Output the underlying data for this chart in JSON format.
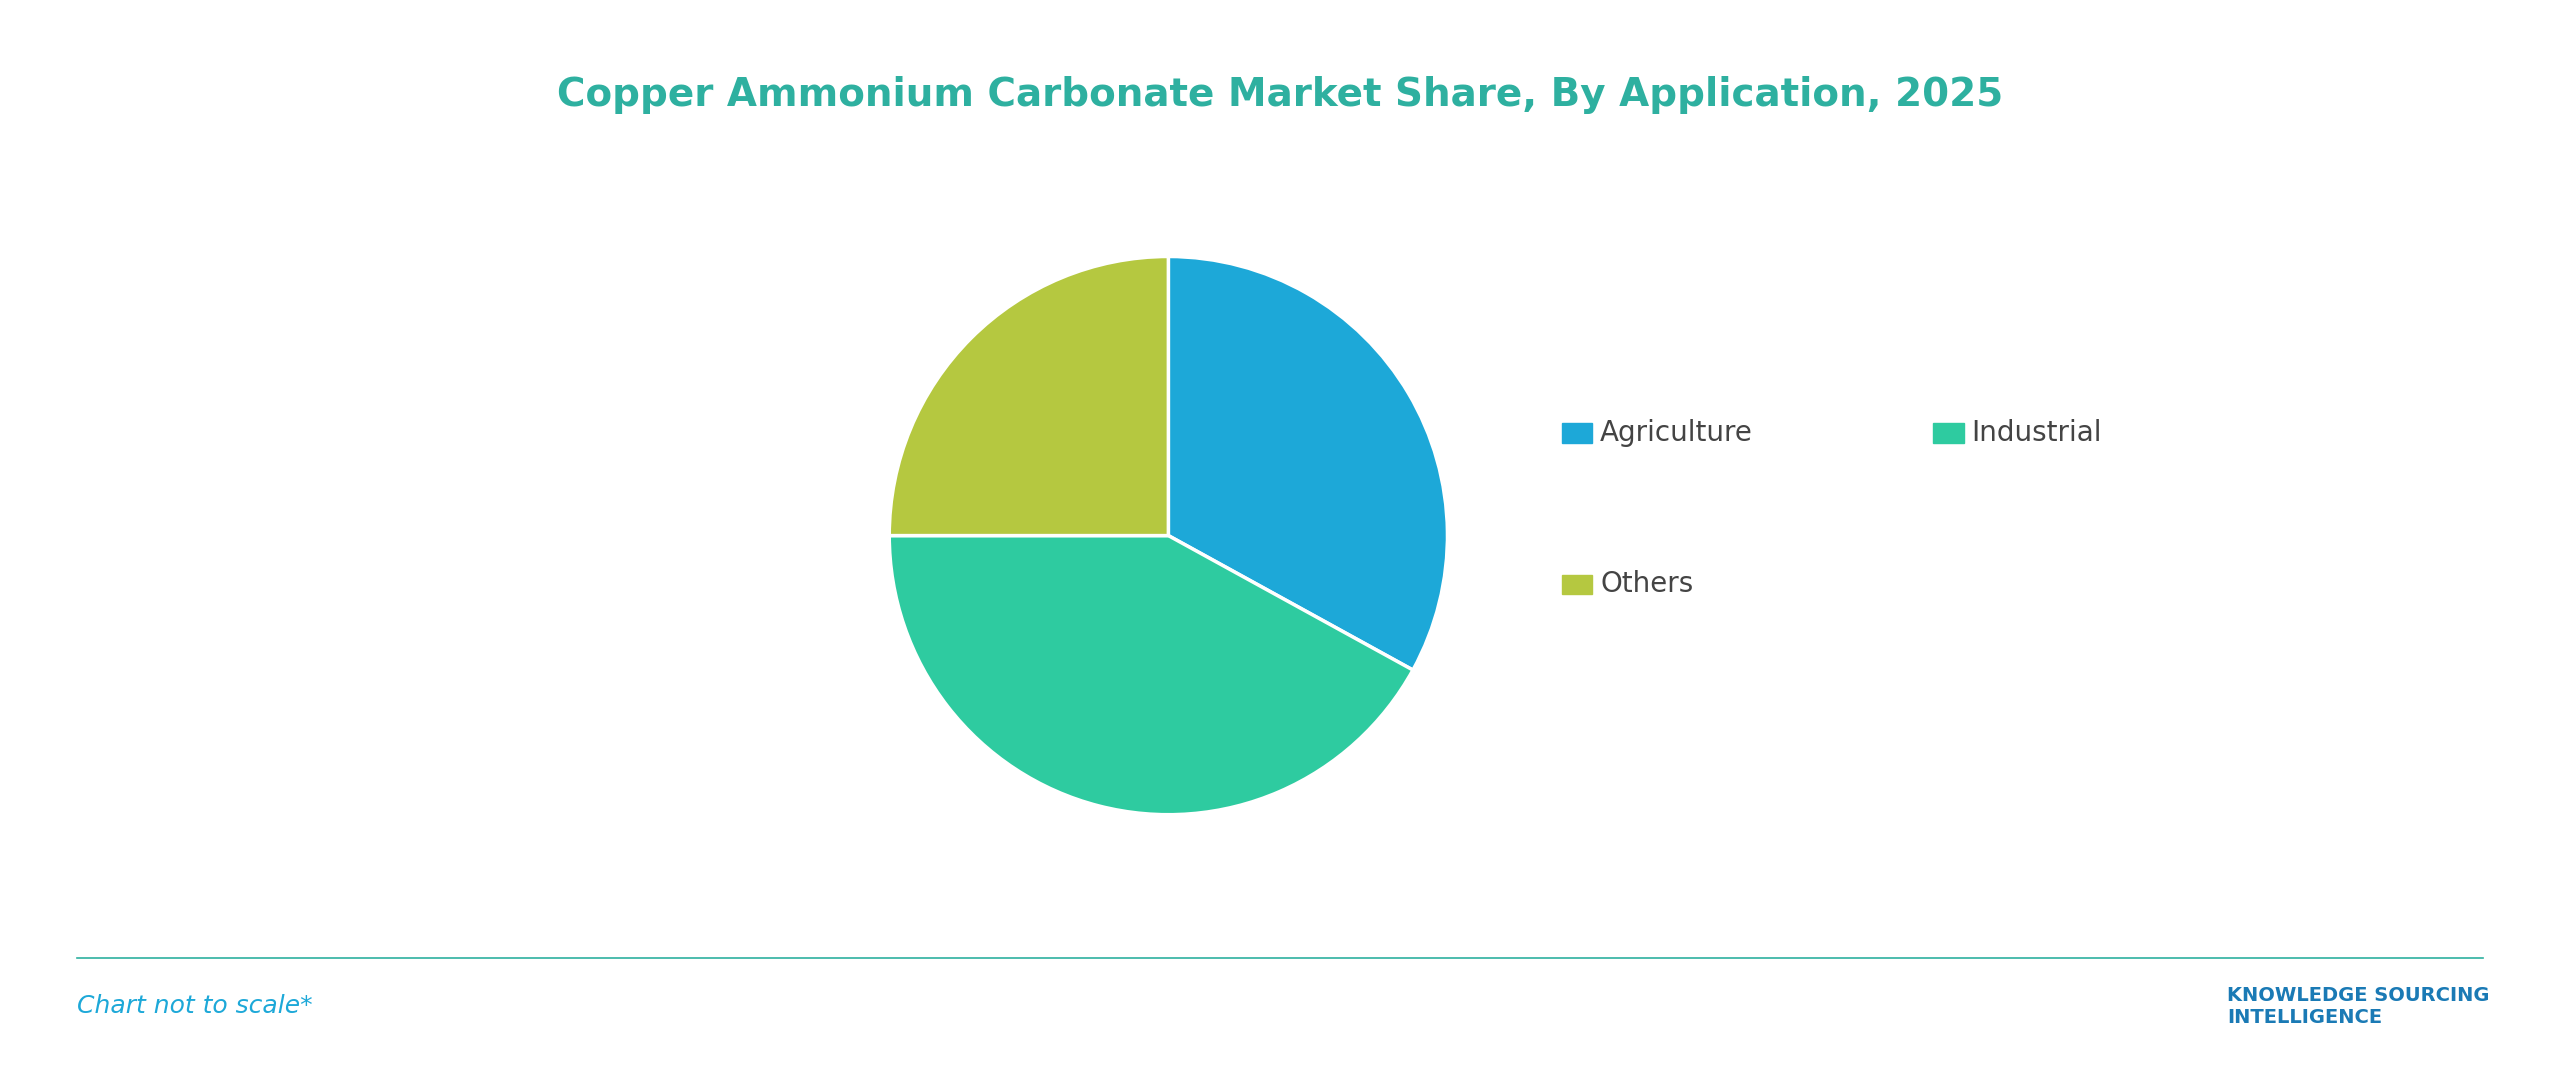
{
  "title": "Copper Ammonium Carbonate Market Share, By Application, 2025",
  "title_color": "#2eb0a0",
  "title_fontsize": 28,
  "slices": [
    {
      "label": "Agriculture",
      "value": 33,
      "color": "#1da8d8"
    },
    {
      "label": "Industrial",
      "value": 42,
      "color": "#2ecba0"
    },
    {
      "label": "Others",
      "value": 25,
      "color": "#b5c840"
    }
  ],
  "startangle": 90,
  "background_color": "#ffffff",
  "legend_fontsize": 20,
  "footer_text": "Chart not to scale*",
  "footer_color": "#1da8d8",
  "footer_fontsize": 18,
  "separator_color": "#2eb0a0",
  "wedge_edge_color": "#ffffff",
  "wedge_linewidth": 2.5
}
